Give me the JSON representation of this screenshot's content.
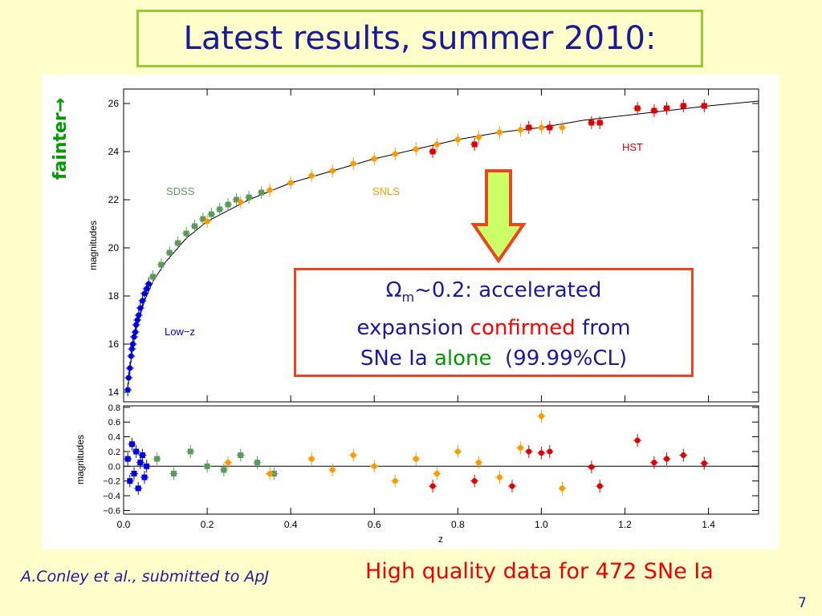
{
  "slide": {
    "title": "Latest results, summer 2010:",
    "fainter_label": "fainter→",
    "callout": {
      "omega": "Ω",
      "omega_sub": "m",
      "line1_rest": "~0.2: accelerated",
      "line2_prefix": "expansion ",
      "line2_highlight": "confirmed",
      "line2_suffix": " from",
      "line3_prefix": "SNe Ia ",
      "line3_highlight": "alone",
      "line3_suffix": "  (99.99%CL)"
    },
    "credit": "A.Conley et al., submitted to ApJ",
    "summary": "High quality data for 472 SNe Ia",
    "page_number": "7"
  },
  "colors": {
    "background": "#ffffcc",
    "title_border": "#99cc33",
    "text_blue": "#1a1a99",
    "callout_border": "#e8461e",
    "arrow_fill": "#ccff66",
    "arrow_stroke": "#e8461e",
    "lowz": "#0000dd",
    "sdss": "#5c9a5c",
    "snls": "#ff9900",
    "hst": "#dd0000"
  },
  "chart_data": [
    {
      "type": "scatter",
      "panel": "hubble-diagram",
      "xlabel": "",
      "ylabel": "magnitudes",
      "xlim": [
        0.0,
        1.52
      ],
      "ylim": [
        13.6,
        26.6
      ],
      "yticks": [
        "14",
        "16",
        "18",
        "20",
        "22",
        "24",
        "26"
      ],
      "annotations": [
        "SDSS",
        "SNLS",
        "HST",
        "Low−z"
      ],
      "series": [
        {
          "name": "Low−z",
          "color": "#0000dd",
          "points": [
            [
              0.01,
              14.1
            ],
            [
              0.012,
              14.6
            ],
            [
              0.015,
              15.0
            ],
            [
              0.018,
              15.5
            ],
            [
              0.02,
              15.8
            ],
            [
              0.022,
              16.0
            ],
            [
              0.025,
              16.3
            ],
            [
              0.028,
              16.5
            ],
            [
              0.03,
              16.8
            ],
            [
              0.033,
              17.0
            ],
            [
              0.036,
              17.2
            ],
            [
              0.04,
              17.5
            ],
            [
              0.045,
              17.8
            ],
            [
              0.05,
              18.1
            ],
            [
              0.055,
              18.3
            ],
            [
              0.06,
              18.5
            ]
          ]
        },
        {
          "name": "SDSS",
          "color": "#5c9a5c",
          "points": [
            [
              0.07,
              18.8
            ],
            [
              0.09,
              19.3
            ],
            [
              0.11,
              19.8
            ],
            [
              0.13,
              20.2
            ],
            [
              0.15,
              20.6
            ],
            [
              0.17,
              20.9
            ],
            [
              0.19,
              21.2
            ],
            [
              0.21,
              21.4
            ],
            [
              0.23,
              21.6
            ],
            [
              0.25,
              21.8
            ],
            [
              0.27,
              22.0
            ],
            [
              0.3,
              22.1
            ],
            [
              0.33,
              22.3
            ]
          ]
        },
        {
          "name": "SNLS",
          "color": "#ff9900",
          "points": [
            [
              0.2,
              21.1
            ],
            [
              0.28,
              21.9
            ],
            [
              0.35,
              22.4
            ],
            [
              0.4,
              22.7
            ],
            [
              0.45,
              23.0
            ],
            [
              0.5,
              23.2
            ],
            [
              0.55,
              23.5
            ],
            [
              0.6,
              23.7
            ],
            [
              0.65,
              23.9
            ],
            [
              0.7,
              24.1
            ],
            [
              0.75,
              24.3
            ],
            [
              0.8,
              24.5
            ],
            [
              0.85,
              24.6
            ],
            [
              0.9,
              24.8
            ],
            [
              0.95,
              24.9
            ],
            [
              1.0,
              25.0
            ],
            [
              1.05,
              25.0
            ]
          ]
        },
        {
          "name": "HST",
          "color": "#dd0000",
          "points": [
            [
              0.74,
              24.0
            ],
            [
              0.84,
              24.3
            ],
            [
              0.97,
              25.0
            ],
            [
              1.02,
              25.0
            ],
            [
              1.12,
              25.2
            ],
            [
              1.14,
              25.2
            ],
            [
              1.23,
              25.8
            ],
            [
              1.27,
              25.7
            ],
            [
              1.3,
              25.8
            ],
            [
              1.34,
              25.9
            ],
            [
              1.39,
              25.9
            ]
          ]
        }
      ],
      "fit_curve": [
        [
          0.01,
          14.2
        ],
        [
          0.02,
          15.7
        ],
        [
          0.03,
          16.6
        ],
        [
          0.05,
          17.8
        ],
        [
          0.07,
          18.6
        ],
        [
          0.1,
          19.4
        ],
        [
          0.15,
          20.4
        ],
        [
          0.2,
          21.1
        ],
        [
          0.3,
          22.0
        ],
        [
          0.4,
          22.7
        ],
        [
          0.5,
          23.2
        ],
        [
          0.6,
          23.7
        ],
        [
          0.7,
          24.1
        ],
        [
          0.8,
          24.5
        ],
        [
          0.9,
          24.8
        ],
        [
          1.0,
          25.0
        ],
        [
          1.1,
          25.3
        ],
        [
          1.2,
          25.5
        ],
        [
          1.3,
          25.7
        ],
        [
          1.4,
          25.9
        ],
        [
          1.52,
          26.1
        ]
      ]
    },
    {
      "type": "scatter",
      "panel": "residuals",
      "xlabel": "z",
      "ylabel": "magnitudes",
      "xlim": [
        0.0,
        1.52
      ],
      "ylim": [
        -0.65,
        0.82
      ],
      "xticks": [
        "0.0",
        "0.2",
        "0.4",
        "0.6",
        "0.8",
        "1.0",
        "1.2",
        "1.4"
      ],
      "yticks": [
        "−0.6",
        "−0.4",
        "−0.2",
        "0.0",
        "0.2",
        "0.4",
        "0.6",
        "0.8"
      ],
      "series": [
        {
          "name": "Low−z",
          "color": "#0000dd",
          "points": [
            [
              0.01,
              0.1
            ],
            [
              0.015,
              -0.2
            ],
            [
              0.02,
              0.3
            ],
            [
              0.025,
              -0.1
            ],
            [
              0.03,
              0.2
            ],
            [
              0.035,
              -0.3
            ],
            [
              0.04,
              0.05
            ],
            [
              0.045,
              0.15
            ],
            [
              0.05,
              -0.15
            ],
            [
              0.055,
              0.0
            ]
          ]
        },
        {
          "name": "SDSS",
          "color": "#5c9a5c",
          "points": [
            [
              0.08,
              0.1
            ],
            [
              0.12,
              -0.1
            ],
            [
              0.16,
              0.2
            ],
            [
              0.2,
              0.0
            ],
            [
              0.24,
              -0.05
            ],
            [
              0.28,
              0.15
            ],
            [
              0.32,
              0.05
            ],
            [
              0.36,
              -0.1
            ]
          ]
        },
        {
          "name": "SNLS",
          "color": "#ff9900",
          "points": [
            [
              0.25,
              0.05
            ],
            [
              0.35,
              -0.1
            ],
            [
              0.45,
              0.1
            ],
            [
              0.5,
              -0.05
            ],
            [
              0.55,
              0.15
            ],
            [
              0.6,
              0.0
            ],
            [
              0.65,
              -0.2
            ],
            [
              0.7,
              0.1
            ],
            [
              0.75,
              -0.1
            ],
            [
              0.8,
              0.2
            ],
            [
              0.85,
              0.05
            ],
            [
              0.9,
              -0.15
            ],
            [
              0.95,
              0.25
            ],
            [
              1.0,
              0.68
            ],
            [
              1.05,
              -0.3
            ]
          ]
        },
        {
          "name": "HST",
          "color": "#dd0000",
          "points": [
            [
              0.74,
              -0.27
            ],
            [
              0.84,
              -0.2
            ],
            [
              0.93,
              -0.27
            ],
            [
              0.97,
              0.2
            ],
            [
              1.0,
              0.18
            ],
            [
              1.02,
              0.2
            ],
            [
              1.12,
              -0.01
            ],
            [
              1.14,
              -0.27
            ],
            [
              1.23,
              0.35
            ],
            [
              1.27,
              0.05
            ],
            [
              1.3,
              0.1
            ],
            [
              1.34,
              0.15
            ],
            [
              1.39,
              0.04
            ]
          ]
        }
      ]
    }
  ]
}
